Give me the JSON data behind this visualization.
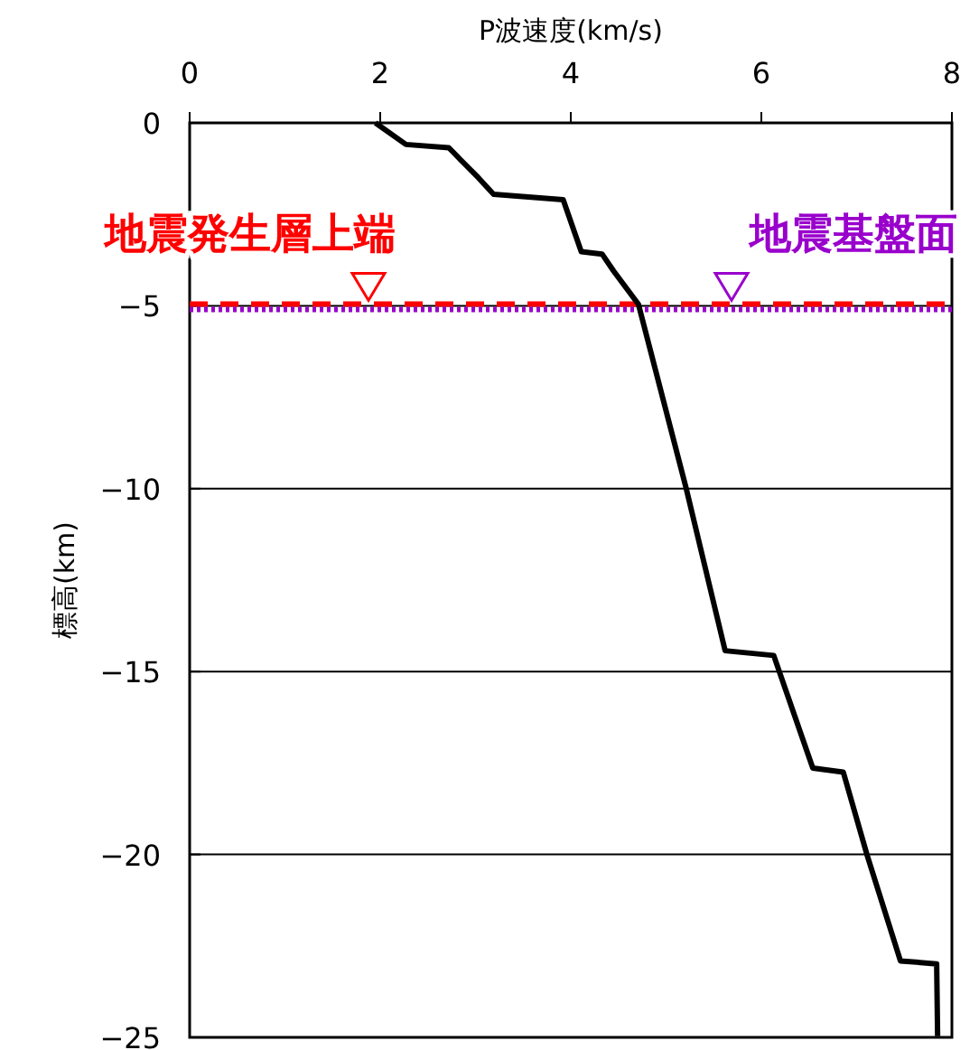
{
  "chart_data": {
    "type": "line",
    "xlabel": "P波速度(km/s)",
    "ylabel": "標高(km)",
    "xlim": [
      0,
      8
    ],
    "xticks": [
      0,
      2,
      4,
      6,
      8
    ],
    "ylim": [
      -25,
      0
    ],
    "yticks": [
      0,
      -5,
      -10,
      -15,
      -20,
      -25
    ],
    "grid": "y",
    "marker": "none",
    "line_style": "solid",
    "series": [
      {
        "color": "#000000",
        "x": [
          1.95,
          2.27,
          2.72,
          2.84,
          3.03,
          3.19,
          3.92,
          4.11,
          4.33,
          4.45,
          4.71,
          5.21,
          5.62,
          6.13,
          6.54,
          6.86,
          7.11,
          7.46,
          7.84,
          7.85
        ],
        "values": [
          0,
          -0.59,
          -0.68,
          -1.0,
          -1.5,
          -1.95,
          -2.1,
          -3.52,
          -3.59,
          -4.05,
          -4.96,
          -9.98,
          -14.43,
          -14.56,
          -17.64,
          -17.75,
          -20.02,
          -22.91,
          -22.99,
          -24.97
        ]
      }
    ],
    "ref_lines": [
      {
        "axis": "y",
        "value": -5,
        "label": "地震発生層上端",
        "color": "#ff0000",
        "line_style": "dashed"
      },
      {
        "axis": "y",
        "value": -5,
        "label": "地震基盤面",
        "color": "#9900cc",
        "line_style": "dotted"
      }
    ]
  }
}
